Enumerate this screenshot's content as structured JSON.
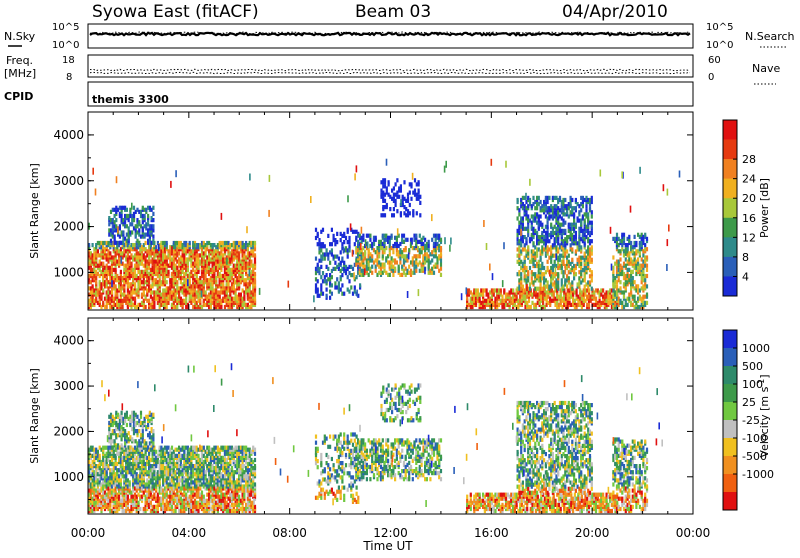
{
  "header": {
    "station": "Syowa East (fitACF)",
    "beam": "Beam 03",
    "date": "04/Apr/2010"
  },
  "status_panels": {
    "nsky_label": "N.Sky",
    "nsky_top": "10^5",
    "nsky_bottom": "10^0",
    "nsearch_label": "N.Search",
    "nsearch_top": "10^5",
    "nsearch_bottom": "10^0",
    "freq_label_1": "Freq.",
    "freq_label_2": "[MHz]",
    "freq_top": "18",
    "freq_bottom": "8",
    "nave_label": "Nave",
    "nave_top": "60",
    "nave_bottom": "0",
    "cpid_label": "CPID",
    "cpid_value": "themis 3300"
  },
  "chart_data": [
    {
      "type": "heatmap",
      "panel": "power",
      "ylabel": "Slant Range [km]",
      "xlabel": "Time UT",
      "x_ticks": [
        "00:00",
        "04:00",
        "08:00",
        "12:00",
        "16:00",
        "20:00",
        "00:00"
      ],
      "y_ticks": [
        "1000",
        "2000",
        "3000",
        "4000"
      ],
      "ylim": [
        180,
        4500
      ],
      "xlim_hours": [
        0,
        24
      ],
      "colorbar": {
        "label": "Power [dB]",
        "ticks": [
          "4",
          "8",
          "12",
          "16",
          "20",
          "24",
          "28"
        ],
        "colors": [
          "#1a2bd6",
          "#2a5fb8",
          "#2e8a8a",
          "#3d9a4a",
          "#a8c83a",
          "#f0b020",
          "#f08020",
          "#e63a10",
          "#e01010"
        ]
      },
      "echo_regions": [
        {
          "t0": 0.0,
          "t1": 6.6,
          "r0": 200,
          "r1": 1600,
          "intensity": "high"
        },
        {
          "t0": 0.8,
          "t1": 2.6,
          "r0": 1600,
          "r1": 2400,
          "intensity": "medium"
        },
        {
          "t0": 9.0,
          "t1": 10.8,
          "r0": 400,
          "r1": 1900,
          "intensity": "low"
        },
        {
          "t0": 10.6,
          "t1": 14.0,
          "r0": 900,
          "r1": 1800,
          "intensity": "medium"
        },
        {
          "t0": 11.6,
          "t1": 13.2,
          "r0": 2200,
          "r1": 3000,
          "intensity": "low"
        },
        {
          "t0": 15.0,
          "t1": 21.0,
          "r0": 200,
          "r1": 600,
          "intensity": "high"
        },
        {
          "t0": 17.0,
          "t1": 20.0,
          "r0": 600,
          "r1": 2600,
          "intensity": "medium"
        },
        {
          "t0": 20.8,
          "t1": 22.2,
          "r0": 200,
          "r1": 1800,
          "intensity": "medium"
        }
      ]
    },
    {
      "type": "heatmap",
      "panel": "velocity",
      "ylabel": "Slant Range [km]",
      "xlabel": "Time UT",
      "x_ticks": [
        "00:00",
        "04:00",
        "08:00",
        "12:00",
        "16:00",
        "20:00",
        "00:00"
      ],
      "y_ticks": [
        "1000",
        "2000",
        "3000",
        "4000"
      ],
      "ylim": [
        180,
        4500
      ],
      "xlim_hours": [
        0,
        24
      ],
      "colorbar": {
        "label": "Velocity [m s",
        "label_sup": "-1",
        "label_end": "]",
        "ticks": [
          "1000",
          "500",
          "100",
          "25",
          "-25",
          "-100",
          "-500",
          "-1000"
        ],
        "colors": [
          "#1a2bd6",
          "#2a5fb8",
          "#2e8a6a",
          "#3d9a4a",
          "#70c840",
          "#c0c0c0",
          "#f0c020",
          "#f09020",
          "#f06010",
          "#e01010"
        ]
      },
      "echo_regions": [
        {
          "t0": 0.0,
          "t1": 6.6,
          "r0": 200,
          "r1": 1600,
          "intensity": "high"
        },
        {
          "t0": 0.8,
          "t1": 2.6,
          "r0": 1600,
          "r1": 2400,
          "intensity": "medium"
        },
        {
          "t0": 9.0,
          "t1": 10.8,
          "r0": 400,
          "r1": 1900,
          "intensity": "low"
        },
        {
          "t0": 10.6,
          "t1": 14.0,
          "r0": 900,
          "r1": 1800,
          "intensity": "medium"
        },
        {
          "t0": 11.6,
          "t1": 13.2,
          "r0": 2200,
          "r1": 3000,
          "intensity": "low"
        },
        {
          "t0": 15.0,
          "t1": 21.0,
          "r0": 200,
          "r1": 600,
          "intensity": "high"
        },
        {
          "t0": 17.0,
          "t1": 20.0,
          "r0": 600,
          "r1": 2600,
          "intensity": "medium"
        },
        {
          "t0": 20.8,
          "t1": 22.2,
          "r0": 200,
          "r1": 1800,
          "intensity": "medium"
        }
      ]
    }
  ]
}
